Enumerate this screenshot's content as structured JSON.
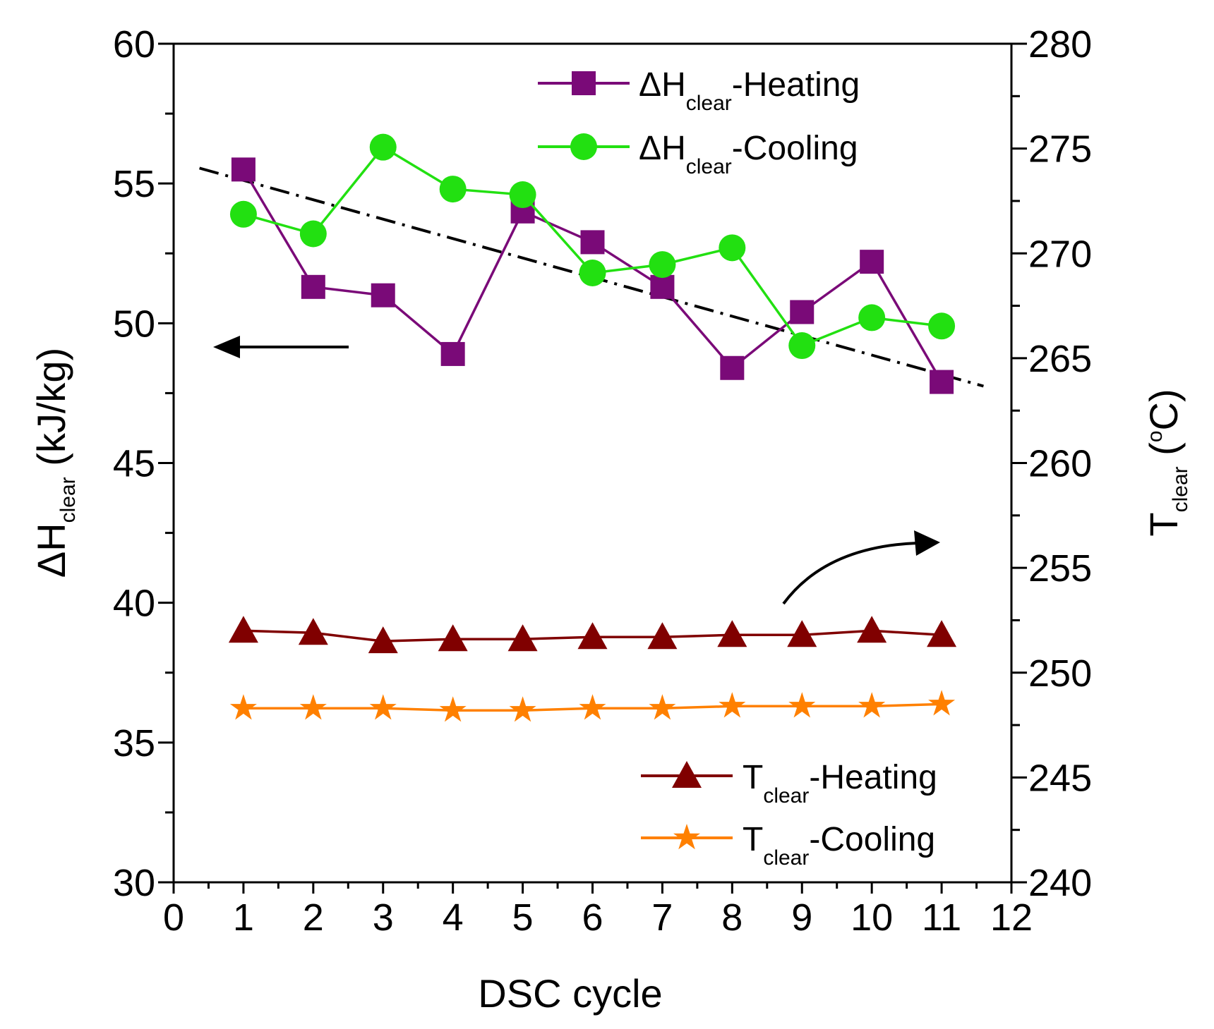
{
  "chart_data": {
    "type": "line",
    "xlabel": "DSC cycle",
    "ylabel_left": {
      "main": "ΔH",
      "sub": "clear",
      "unit": " (kJ/kg)"
    },
    "ylabel_right": {
      "main": "T",
      "sub": "clear",
      "unit_open": " (",
      "unit_sup": "o",
      "unit_close": "C)"
    },
    "xlim": [
      0,
      12
    ],
    "ylim_left": [
      30,
      60
    ],
    "ylim_right": [
      240,
      280
    ],
    "x_ticks": [
      "0",
      "1",
      "2",
      "3",
      "4",
      "5",
      "6",
      "7",
      "8",
      "9",
      "10",
      "11",
      "12"
    ],
    "y_left_ticks": [
      "30",
      "35",
      "40",
      "45",
      "50",
      "55",
      "60"
    ],
    "y_right_ticks": [
      "240",
      "245",
      "250",
      "255",
      "260",
      "265",
      "270",
      "275",
      "280"
    ],
    "x": [
      1,
      2,
      3,
      4,
      5,
      6,
      7,
      8,
      9,
      10,
      11
    ],
    "series": [
      {
        "name": "ΔH_clear-Heating",
        "legend_main": "ΔH",
        "legend_sub": "clear",
        "legend_suffix": "-Heating",
        "axis": "left",
        "marker": "square",
        "color": "#7a0a78",
        "values": [
          55.5,
          51.3,
          51.0,
          48.9,
          54.0,
          52.9,
          51.3,
          48.4,
          50.4,
          52.2,
          47.9
        ]
      },
      {
        "name": "ΔH_clear-Cooling",
        "legend_main": "ΔH",
        "legend_sub": "clear",
        "legend_suffix": "-Cooling",
        "axis": "left",
        "marker": "circle",
        "color": "#22e011",
        "values": [
          53.9,
          53.2,
          56.3,
          54.8,
          54.6,
          51.8,
          52.1,
          52.7,
          49.2,
          50.2,
          49.9
        ]
      },
      {
        "name": "T_clear-Heating",
        "legend_main": "T",
        "legend_sub": "clear",
        "legend_suffix": "-Heating",
        "axis": "right",
        "marker": "triangle",
        "color": "#800000",
        "values": [
          252.0,
          251.9,
          251.5,
          251.6,
          251.6,
          251.7,
          251.7,
          251.8,
          251.8,
          252.0,
          251.8
        ]
      },
      {
        "name": "T_clear-Cooling",
        "legend_main": "T",
        "legend_sub": "clear",
        "legend_suffix": "-Cooling",
        "axis": "right",
        "marker": "star",
        "color": "#ff8000",
        "values": [
          248.3,
          248.3,
          248.3,
          248.2,
          248.2,
          248.3,
          248.3,
          248.4,
          248.4,
          248.4,
          248.5
        ]
      }
    ],
    "trendline": {
      "style": "dash-dot",
      "axis": "left",
      "x": [
        0.37,
        11.6
      ],
      "y": [
        55.55,
        47.75
      ],
      "color": "#000000"
    },
    "annotations": [
      "left-arrow pointing to left axis",
      "curved arrow pointing to right axis"
    ]
  }
}
